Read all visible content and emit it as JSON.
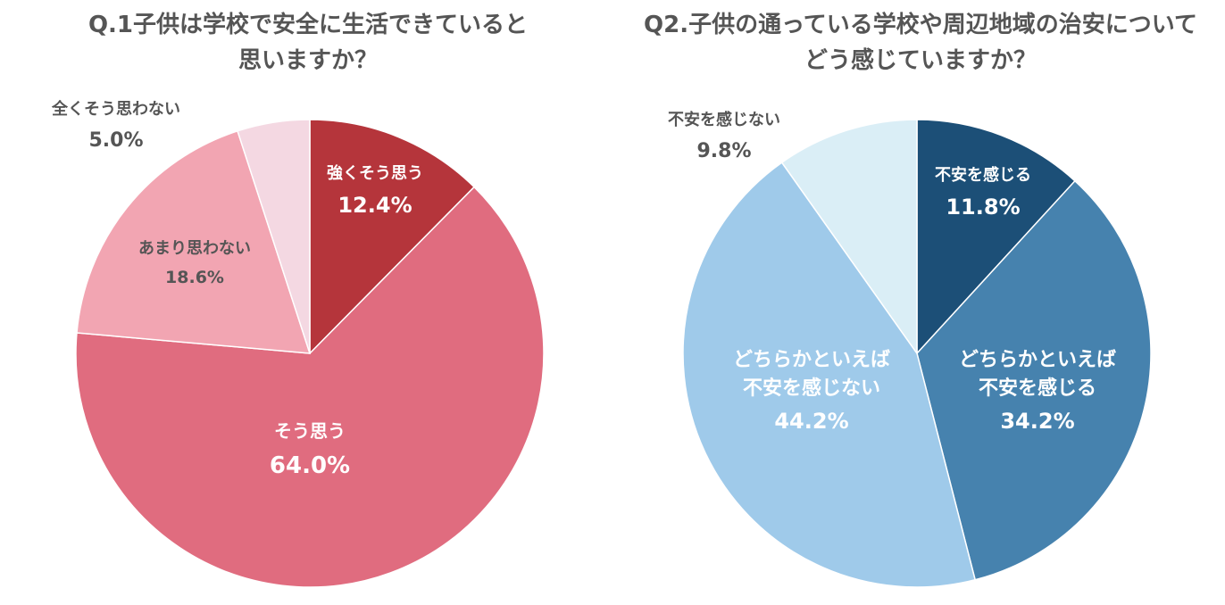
{
  "chart_data": [
    {
      "type": "pie",
      "title_lines": [
        "Q.1子供は学校で安全に生活できていると",
        "思いますか？"
      ],
      "slices": [
        {
          "label_lines": [
            "強くそう思う"
          ],
          "value": 12.4,
          "value_label": "12.4%",
          "color": "#b5353b"
        },
        {
          "label_lines": [
            "そう思う"
          ],
          "value": 64.0,
          "value_label": "64.0%",
          "color": "#e06c7f"
        },
        {
          "label_lines": [
            "あまり思わない"
          ],
          "value": 18.6,
          "value_label": "18.6%",
          "color": "#f2a5b2"
        },
        {
          "label_lines": [
            "全くそう思わない"
          ],
          "value": 5.0,
          "value_label": "5.0%",
          "color": "#f4d8e2"
        }
      ]
    },
    {
      "type": "pie",
      "title_lines": [
        "Q2.子供の通っている学校や周辺地域の治安について",
        "どう感じていますか？"
      ],
      "slices": [
        {
          "label_lines": [
            "不安を感じる"
          ],
          "value": 11.8,
          "value_label": "11.8%",
          "color": "#1c4f77"
        },
        {
          "label_lines": [
            "どちらかといえば",
            "不安を感じる"
          ],
          "value": 34.2,
          "value_label": "34.2%",
          "color": "#4682ae"
        },
        {
          "label_lines": [
            "どちらかといえば",
            "不安を感じない"
          ],
          "value": 44.2,
          "value_label": "44.2%",
          "color": "#9fcaea"
        },
        {
          "label_lines": [
            "不安を感じない"
          ],
          "value": 9.8,
          "value_label": "9.8%",
          "color": "#daeef6"
        }
      ]
    }
  ]
}
